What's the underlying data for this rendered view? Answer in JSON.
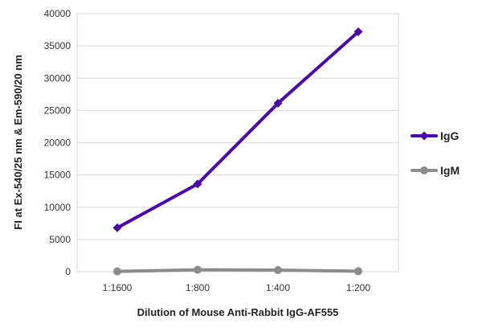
{
  "chart_data": {
    "type": "line",
    "categories": [
      "1:1600",
      "1:800",
      "1:400",
      "1:200"
    ],
    "series": [
      {
        "name": "IgG",
        "values": [
          6800,
          13600,
          26100,
          37200
        ],
        "color": "#4B0AA5",
        "marker": "diamond"
      },
      {
        "name": "IgM",
        "values": [
          50,
          300,
          250,
          80
        ],
        "color": "#8C8C8C",
        "marker": "circle"
      }
    ],
    "ylim": [
      0,
      40000
    ],
    "yticks": [
      0,
      5000,
      10000,
      15000,
      20000,
      25000,
      30000,
      35000,
      40000
    ],
    "xlabel": "Dilution of Mouse Anti-Rabbit IgG-AF555",
    "ylabel": "FI at Ex-540/25 nm & Em-590/20 nm",
    "title": "",
    "grid": true,
    "legend": "right"
  }
}
